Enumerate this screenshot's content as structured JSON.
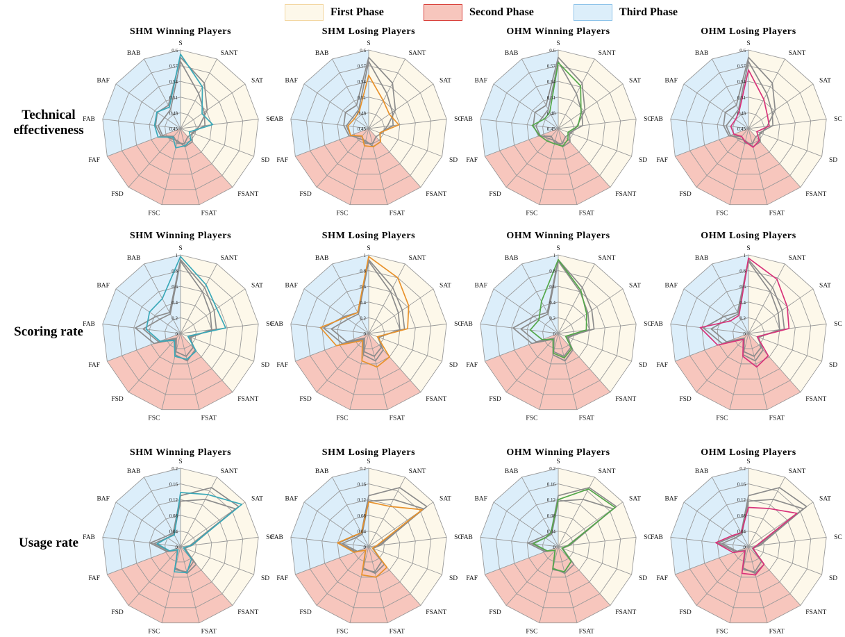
{
  "legend": [
    {
      "label": "First Phase",
      "fill": "#fdf8ea",
      "stroke": "#f3d7a2"
    },
    {
      "label": "Second Phase",
      "fill": "#f7c6bd",
      "stroke": "#d9413b"
    },
    {
      "label": "Third Phase",
      "fill": "#dceefa",
      "stroke": "#8dc3e9"
    }
  ],
  "row_labels": [
    "Technical effectiveness",
    "Scoring rate",
    "Usage rate"
  ],
  "chart_data": [
    {
      "type": "radar",
      "row": 0,
      "col": 0,
      "title": "SHM Winning Players",
      "axes": [
        "S",
        "SANT",
        "SAT",
        "SC",
        "SD",
        "FSANT",
        "FSAT",
        "FSC",
        "FSD",
        "FAF",
        "FAB",
        "BAF",
        "BAB"
      ],
      "rlim": [
        0.45,
        0.6
      ],
      "ticks": [
        "0.45",
        "0.48",
        "0.51",
        "0.54",
        "0.57",
        "0.6"
      ],
      "series": [
        {
          "color": "#3aa8b8",
          "values": [
            0.592,
            0.54,
            0.5,
            0.512,
            0.468,
            0.48,
            0.484,
            0.488,
            0.472,
            0.496,
            0.5,
            0.505,
            0.496
          ]
        },
        {
          "color": "#8c8c8c",
          "values": [
            0.586,
            0.548,
            0.512,
            0.486,
            0.476,
            0.471,
            0.48,
            0.478,
            0.47,
            0.49,
            0.498,
            0.504,
            0.5
          ]
        },
        {
          "color": "#8c8c8c",
          "values": [
            0.578,
            0.525,
            0.505,
            0.497,
            0.473,
            0.484,
            0.486,
            0.474,
            0.476,
            0.487,
            0.493,
            0.487,
            0.491
          ]
        }
      ]
    },
    {
      "type": "radar",
      "row": 0,
      "col": 1,
      "title": "SHM Losing Players",
      "axes": [
        "S",
        "SANT",
        "SAT",
        "SC",
        "SD",
        "FSANT",
        "FSAT",
        "FSC",
        "FSD",
        "FAF",
        "FAB",
        "BAF",
        "BAB"
      ],
      "rlim": [
        0.45,
        0.6
      ],
      "ticks": [
        "0.45",
        "0.48",
        "0.51",
        "0.54",
        "0.57",
        "0.6"
      ],
      "series": [
        {
          "color": "#e8922c",
          "values": [
            0.552,
            0.51,
            0.498,
            0.508,
            0.473,
            0.484,
            0.486,
            0.484,
            0.469,
            0.487,
            0.49,
            0.483,
            0.488
          ]
        },
        {
          "color": "#8c8c8c",
          "values": [
            0.586,
            0.548,
            0.512,
            0.486,
            0.476,
            0.471,
            0.48,
            0.478,
            0.47,
            0.49,
            0.498,
            0.504,
            0.5
          ]
        },
        {
          "color": "#8c8c8c",
          "values": [
            0.578,
            0.525,
            0.505,
            0.497,
            0.473,
            0.484,
            0.486,
            0.474,
            0.476,
            0.487,
            0.493,
            0.487,
            0.491
          ]
        }
      ]
    },
    {
      "type": "radar",
      "row": 0,
      "col": 2,
      "title": "OHM Winning Players",
      "axes": [
        "S",
        "SANT",
        "SAT",
        "SC",
        "SD",
        "FSANT",
        "FSAT",
        "FSC",
        "FSD",
        "FAF",
        "FAB",
        "BAF",
        "BAB"
      ],
      "rlim": [
        0.45,
        0.6
      ],
      "ticks": [
        "0.45",
        "0.48",
        "0.51",
        "0.54",
        "0.57",
        "0.6"
      ],
      "series": [
        {
          "color": "#54a84a",
          "values": [
            0.576,
            0.542,
            0.503,
            0.488,
            0.47,
            0.478,
            0.485,
            0.48,
            0.482,
            0.488,
            0.5,
            0.482,
            0.485
          ]
        },
        {
          "color": "#8c8c8c",
          "values": [
            0.586,
            0.548,
            0.512,
            0.486,
            0.476,
            0.471,
            0.48,
            0.478,
            0.47,
            0.49,
            0.498,
            0.504,
            0.5
          ]
        },
        {
          "color": "#8c8c8c",
          "values": [
            0.578,
            0.525,
            0.505,
            0.497,
            0.473,
            0.484,
            0.486,
            0.474,
            0.476,
            0.487,
            0.493,
            0.487,
            0.491
          ]
        }
      ]
    },
    {
      "type": "radar",
      "row": 0,
      "col": 3,
      "title": "OHM Losing Players",
      "axes": [
        "S",
        "SANT",
        "SAT",
        "SC",
        "SD",
        "FSANT",
        "FSAT",
        "FSC",
        "FSD",
        "FAF",
        "FAB",
        "BAF",
        "BAB"
      ],
      "rlim": [
        0.45,
        0.6
      ],
      "ticks": [
        "0.45",
        "0.48",
        "0.51",
        "0.54",
        "0.57",
        "0.6"
      ],
      "series": [
        {
          "color": "#d8337a",
          "values": [
            0.562,
            0.513,
            0.494,
            0.49,
            0.467,
            0.481,
            0.487,
            0.476,
            0.47,
            0.48,
            0.484,
            0.48,
            0.488
          ]
        },
        {
          "color": "#8c8c8c",
          "values": [
            0.586,
            0.548,
            0.512,
            0.486,
            0.476,
            0.471,
            0.48,
            0.478,
            0.47,
            0.49,
            0.498,
            0.504,
            0.5
          ]
        },
        {
          "color": "#8c8c8c",
          "values": [
            0.578,
            0.525,
            0.505,
            0.497,
            0.473,
            0.484,
            0.486,
            0.474,
            0.476,
            0.487,
            0.493,
            0.487,
            0.491
          ]
        }
      ]
    },
    {
      "type": "radar",
      "row": 1,
      "col": 0,
      "title": "SHM Winning Players",
      "axes": [
        "S",
        "SANT",
        "SAT",
        "SC",
        "SD",
        "FSANT",
        "FSAT",
        "FSC",
        "FSD",
        "FAF",
        "FAB",
        "BAF",
        "BAB"
      ],
      "rlim": [
        0,
        1
      ],
      "ticks": [
        "0",
        "0.2",
        "0.4",
        "0.6",
        "0.8",
        "1"
      ],
      "series": [
        {
          "color": "#3aa8b8",
          "values": [
            0.98,
            0.7,
            0.56,
            0.58,
            0.1,
            0.3,
            0.34,
            0.3,
            0.12,
            0.28,
            0.44,
            0.48,
            0.5
          ]
        },
        {
          "color": "#8c8c8c",
          "values": [
            0.94,
            0.66,
            0.52,
            0.46,
            0.12,
            0.28,
            0.36,
            0.28,
            0.1,
            0.36,
            0.58,
            0.38,
            0.3
          ]
        },
        {
          "color": "#8c8c8c",
          "values": [
            0.92,
            0.6,
            0.46,
            0.4,
            0.14,
            0.24,
            0.3,
            0.24,
            0.08,
            0.3,
            0.48,
            0.32,
            0.28
          ]
        }
      ]
    },
    {
      "type": "radar",
      "row": 1,
      "col": 1,
      "title": "SHM Losing Players",
      "axes": [
        "S",
        "SANT",
        "SAT",
        "SC",
        "SD",
        "FSANT",
        "FSAT",
        "FSC",
        "FSD",
        "FAF",
        "FAB",
        "BAF",
        "BAB"
      ],
      "rlim": [
        0,
        1
      ],
      "ticks": [
        "0",
        "0.2",
        "0.4",
        "0.6",
        "0.8",
        "1"
      ],
      "series": [
        {
          "color": "#e8922c",
          "values": [
            0.98,
            0.8,
            0.62,
            0.5,
            0.12,
            0.4,
            0.44,
            0.36,
            0.12,
            0.44,
            0.62,
            0.36,
            0.3
          ]
        },
        {
          "color": "#8c8c8c",
          "values": [
            0.94,
            0.66,
            0.52,
            0.46,
            0.12,
            0.28,
            0.36,
            0.28,
            0.1,
            0.36,
            0.58,
            0.38,
            0.3
          ]
        },
        {
          "color": "#8c8c8c",
          "values": [
            0.92,
            0.6,
            0.46,
            0.4,
            0.14,
            0.24,
            0.3,
            0.24,
            0.08,
            0.3,
            0.48,
            0.32,
            0.28
          ]
        }
      ]
    },
    {
      "type": "radar",
      "row": 1,
      "col": 2,
      "title": "OHM Winning Players",
      "axes": [
        "S",
        "SANT",
        "SAT",
        "SC",
        "SD",
        "FSANT",
        "FSAT",
        "FSC",
        "FSD",
        "FAF",
        "FAB",
        "BAF",
        "BAB"
      ],
      "rlim": [
        0,
        1
      ],
      "ticks": [
        "0",
        "0.2",
        "0.4",
        "0.6",
        "0.8",
        "1"
      ],
      "series": [
        {
          "color": "#54a84a",
          "values": [
            0.94,
            0.62,
            0.44,
            0.36,
            0.1,
            0.26,
            0.32,
            0.26,
            0.1,
            0.22,
            0.36,
            0.3,
            0.46
          ]
        },
        {
          "color": "#8c8c8c",
          "values": [
            0.94,
            0.66,
            0.52,
            0.46,
            0.12,
            0.28,
            0.36,
            0.28,
            0.1,
            0.36,
            0.58,
            0.38,
            0.3
          ]
        },
        {
          "color": "#8c8c8c",
          "values": [
            0.92,
            0.6,
            0.46,
            0.4,
            0.14,
            0.24,
            0.3,
            0.24,
            0.08,
            0.3,
            0.48,
            0.32,
            0.28
          ]
        }
      ]
    },
    {
      "type": "radar",
      "row": 1,
      "col": 3,
      "title": "OHM Losing Players",
      "axes": [
        "S",
        "SANT",
        "SAT",
        "SC",
        "SD",
        "FSANT",
        "FSAT",
        "FSC",
        "FSD",
        "FAF",
        "FAB",
        "BAF",
        "BAB"
      ],
      "rlim": [
        0,
        1
      ],
      "ticks": [
        "0",
        "0.2",
        "0.4",
        "0.6",
        "0.8",
        "1"
      ],
      "series": [
        {
          "color": "#d8337a",
          "values": [
            0.96,
            0.78,
            0.6,
            0.52,
            0.12,
            0.38,
            0.44,
            0.3,
            0.1,
            0.42,
            0.62,
            0.28,
            0.26
          ]
        },
        {
          "color": "#8c8c8c",
          "values": [
            0.94,
            0.66,
            0.52,
            0.46,
            0.12,
            0.28,
            0.36,
            0.28,
            0.1,
            0.36,
            0.58,
            0.38,
            0.3
          ]
        },
        {
          "color": "#8c8c8c",
          "values": [
            0.92,
            0.6,
            0.46,
            0.4,
            0.14,
            0.24,
            0.3,
            0.24,
            0.08,
            0.3,
            0.48,
            0.32,
            0.28
          ]
        }
      ]
    },
    {
      "type": "radar",
      "row": 2,
      "col": 0,
      "title": "SHM Winning Players",
      "axes": [
        "S",
        "SANT",
        "SAT",
        "SC",
        "SD",
        "FSANT",
        "FSAT",
        "FSC",
        "FSD",
        "FAF",
        "FAB",
        "BAF",
        "BAB"
      ],
      "rlim": [
        0,
        0.2
      ],
      "ticks": [
        "0",
        "0.04",
        "0.08",
        "0.12",
        "0.16",
        "0.2"
      ],
      "series": [
        {
          "color": "#3aa8b8",
          "values": [
            0.138,
            0.15,
            0.19,
            0.028,
            0.008,
            0.042,
            0.068,
            0.066,
            0.01,
            0.03,
            0.06,
            0.04,
            0.034
          ]
        },
        {
          "color": "#8c8c8c",
          "values": [
            0.13,
            0.17,
            0.18,
            0.024,
            0.01,
            0.05,
            0.066,
            0.06,
            0.012,
            0.036,
            0.078,
            0.046,
            0.04
          ]
        },
        {
          "color": "#8c8c8c",
          "values": [
            0.116,
            0.136,
            0.17,
            0.03,
            0.012,
            0.06,
            0.07,
            0.056,
            0.012,
            0.032,
            0.068,
            0.04,
            0.036
          ]
        }
      ]
    },
    {
      "type": "radar",
      "row": 2,
      "col": 1,
      "title": "SHM Losing Players",
      "axes": [
        "S",
        "SANT",
        "SAT",
        "SC",
        "SD",
        "FSANT",
        "FSAT",
        "FSC",
        "FSD",
        "FAF",
        "FAB",
        "BAF",
        "BAB"
      ],
      "rlim": [
        0,
        0.2
      ],
      "ticks": [
        "0",
        "0.04",
        "0.08",
        "0.12",
        "0.16",
        "0.2"
      ],
      "series": [
        {
          "color": "#e8922c",
          "values": [
            0.114,
            0.116,
            0.166,
            0.02,
            0.01,
            0.07,
            0.08,
            0.074,
            0.012,
            0.04,
            0.08,
            0.048,
            0.04
          ]
        },
        {
          "color": "#8c8c8c",
          "values": [
            0.13,
            0.17,
            0.18,
            0.024,
            0.01,
            0.05,
            0.066,
            0.06,
            0.012,
            0.036,
            0.078,
            0.046,
            0.04
          ]
        },
        {
          "color": "#8c8c8c",
          "values": [
            0.116,
            0.136,
            0.17,
            0.03,
            0.012,
            0.06,
            0.07,
            0.056,
            0.012,
            0.032,
            0.068,
            0.04,
            0.036
          ]
        }
      ]
    },
    {
      "type": "radar",
      "row": 2,
      "col": 2,
      "title": "OHM Winning Players",
      "axes": [
        "S",
        "SANT",
        "SAT",
        "SC",
        "SD",
        "FSANT",
        "FSAT",
        "FSC",
        "FSD",
        "FAF",
        "FAB",
        "BAF",
        "BAB"
      ],
      "rlim": [
        0,
        0.2
      ],
      "ticks": [
        "0",
        "0.04",
        "0.08",
        "0.12",
        "0.16",
        "0.2"
      ],
      "series": [
        {
          "color": "#54a84a",
          "values": [
            0.12,
            0.166,
            0.176,
            0.026,
            0.01,
            0.05,
            0.066,
            0.058,
            0.012,
            0.03,
            0.064,
            0.04,
            0.04
          ]
        },
        {
          "color": "#8c8c8c",
          "values": [
            0.13,
            0.17,
            0.18,
            0.024,
            0.01,
            0.05,
            0.066,
            0.06,
            0.012,
            0.036,
            0.078,
            0.046,
            0.04
          ]
        },
        {
          "color": "#8c8c8c",
          "values": [
            0.116,
            0.136,
            0.17,
            0.03,
            0.012,
            0.06,
            0.07,
            0.056,
            0.012,
            0.032,
            0.068,
            0.04,
            0.036
          ]
        }
      ]
    },
    {
      "type": "radar",
      "row": 2,
      "col": 3,
      "title": "OHM Losing Players",
      "axes": [
        "S",
        "SANT",
        "SAT",
        "SC",
        "SD",
        "FSANT",
        "FSAT",
        "FSC",
        "FSD",
        "FAF",
        "FAB",
        "BAF",
        "BAB"
      ],
      "rlim": [
        0,
        0.2
      ],
      "ticks": [
        "0",
        "0.04",
        "0.08",
        "0.12",
        "0.16",
        "0.2"
      ],
      "series": [
        {
          "color": "#d8337a",
          "values": [
            0.1,
            0.11,
            0.15,
            0.02,
            0.012,
            0.06,
            0.074,
            0.07,
            0.014,
            0.042,
            0.084,
            0.05,
            0.04
          ]
        },
        {
          "color": "#8c8c8c",
          "values": [
            0.13,
            0.17,
            0.18,
            0.024,
            0.01,
            0.05,
            0.066,
            0.06,
            0.012,
            0.036,
            0.078,
            0.046,
            0.04
          ]
        },
        {
          "color": "#8c8c8c",
          "values": [
            0.116,
            0.136,
            0.17,
            0.03,
            0.012,
            0.06,
            0.07,
            0.056,
            0.012,
            0.032,
            0.068,
            0.04,
            0.036
          ]
        }
      ]
    }
  ]
}
